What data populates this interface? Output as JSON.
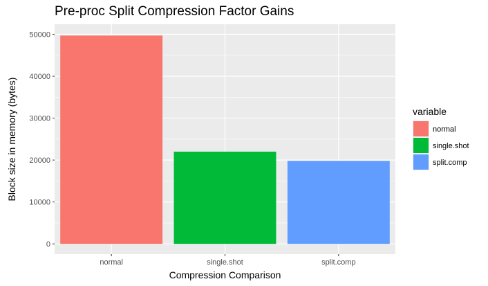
{
  "chart_data": {
    "type": "bar",
    "title": "Pre-proc Split Compression Factor Gains",
    "xlabel": "Compression Comparison",
    "ylabel": "Block size in memory (bytes)",
    "categories": [
      "normal",
      "single.shot",
      "split.comp"
    ],
    "values": [
      49700,
      22000,
      19800
    ],
    "ylim": [
      -2450,
      52400
    ],
    "yticks": [
      0,
      10000,
      20000,
      30000,
      40000,
      50000
    ],
    "grid": true,
    "legend": {
      "title": "variable",
      "placement": "right",
      "entries": [
        "normal",
        "single.shot",
        "split.comp"
      ]
    },
    "colors": {
      "normal": "#F8766D",
      "single.shot": "#00BA38",
      "split.comp": "#619CFF",
      "panel_background": "#EBEBEB",
      "grid_major": "#FFFFFF"
    }
  }
}
